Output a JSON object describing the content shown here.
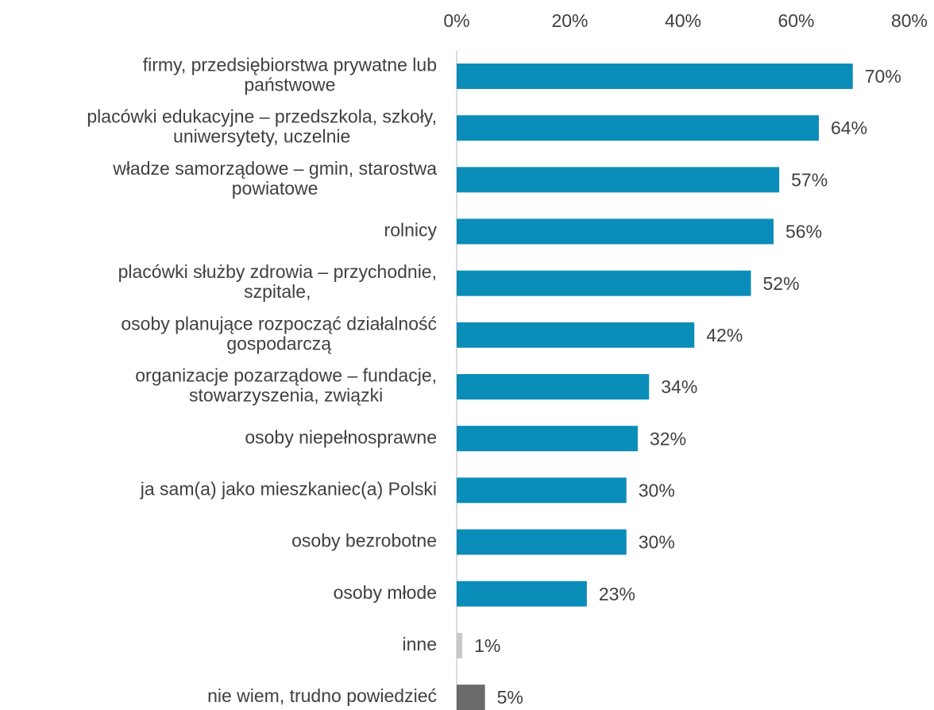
{
  "chart_data": {
    "type": "bar",
    "orientation": "horizontal",
    "categories": [
      "firmy, przedsiębiorstwa prywatne lub\npaństwowe",
      "placówki edukacyjne – przedszkola, szkoły,\nuniwersytety, uczelnie",
      "władze samorządowe – gmin, starostwa\npowiatowe",
      "rolnicy",
      "placówki służby zdrowia – przychodnie,\nszpitale,",
      "osoby planujące rozpocząć działalność\ngospodarczą",
      "organizacje pozarządowe – fundacje,\nstowarzyszenia, związki",
      "osoby niepełnosprawne",
      "ja sam(a) jako mieszkaniec(a) Polski",
      "osoby bezrobotne",
      "osoby młode",
      "inne",
      "nie wiem, trudno powiedzieć"
    ],
    "values": [
      70,
      64,
      57,
      56,
      52,
      42,
      34,
      32,
      30,
      30,
      23,
      1,
      5
    ],
    "value_labels": [
      "70%",
      "64%",
      "57%",
      "56%",
      "52%",
      "42%",
      "34%",
      "32%",
      "30%",
      "30%",
      "23%",
      "1%",
      "5%"
    ],
    "colors": [
      "#0a8db8",
      "#0a8db8",
      "#0a8db8",
      "#0a8db8",
      "#0a8db8",
      "#0a8db8",
      "#0a8db8",
      "#0a8db8",
      "#0a8db8",
      "#0a8db8",
      "#0a8db8",
      "#c8c8c8",
      "#6b6b6b"
    ],
    "xlim": [
      0,
      80
    ],
    "xticks": [
      {
        "value": 0,
        "label": "0%"
      },
      {
        "value": 20,
        "label": "20%"
      },
      {
        "value": 40,
        "label": "40%"
      },
      {
        "value": 60,
        "label": "60%"
      },
      {
        "value": 80,
        "label": "80%"
      }
    ],
    "grid": false
  }
}
